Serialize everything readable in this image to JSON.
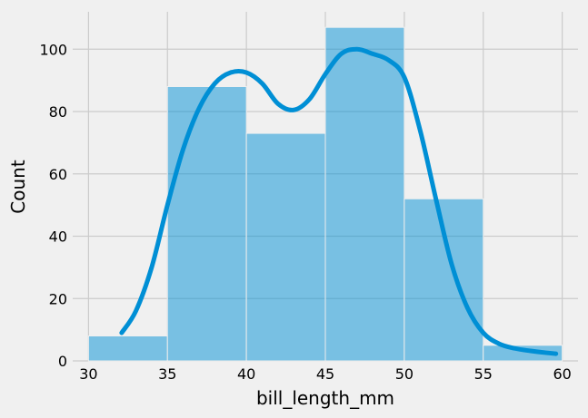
{
  "chart_data": {
    "type": "bar",
    "title": "",
    "xlabel": "bill_length_mm",
    "ylabel": "Count",
    "xlim": [
      29,
      61
    ],
    "ylim": [
      0,
      112
    ],
    "xticks": [
      30,
      35,
      40,
      45,
      50,
      55,
      60
    ],
    "yticks": [
      0,
      20,
      40,
      60,
      80,
      100
    ],
    "grid": true,
    "bar_color": "#008fd5",
    "bins": [
      {
        "x0": 30,
        "x1": 35,
        "value": 8
      },
      {
        "x0": 35,
        "x1": 40,
        "value": 88
      },
      {
        "x0": 40,
        "x1": 45,
        "value": 73
      },
      {
        "x0": 45,
        "x1": 50,
        "value": 107
      },
      {
        "x0": 50,
        "x1": 55,
        "value": 52
      },
      {
        "x0": 55,
        "x1": 60,
        "value": 5
      }
    ],
    "kde": {
      "color": "#008fd5",
      "x": [
        32.1,
        33,
        34,
        35,
        36,
        37,
        38,
        39,
        40,
        41,
        42,
        43,
        44,
        45,
        46,
        47,
        48,
        49,
        50,
        51,
        52,
        53,
        54,
        55,
        56,
        57,
        58,
        59,
        59.6
      ],
      "y": [
        9,
        16,
        30,
        50,
        68,
        81,
        89,
        92.5,
        92.5,
        89,
        82.5,
        80.5,
        84,
        92,
        98.5,
        100,
        98.5,
        96.5,
        91,
        74,
        52,
        31,
        17,
        9,
        5.5,
        4,
        3.2,
        2.6,
        2.3
      ]
    }
  }
}
